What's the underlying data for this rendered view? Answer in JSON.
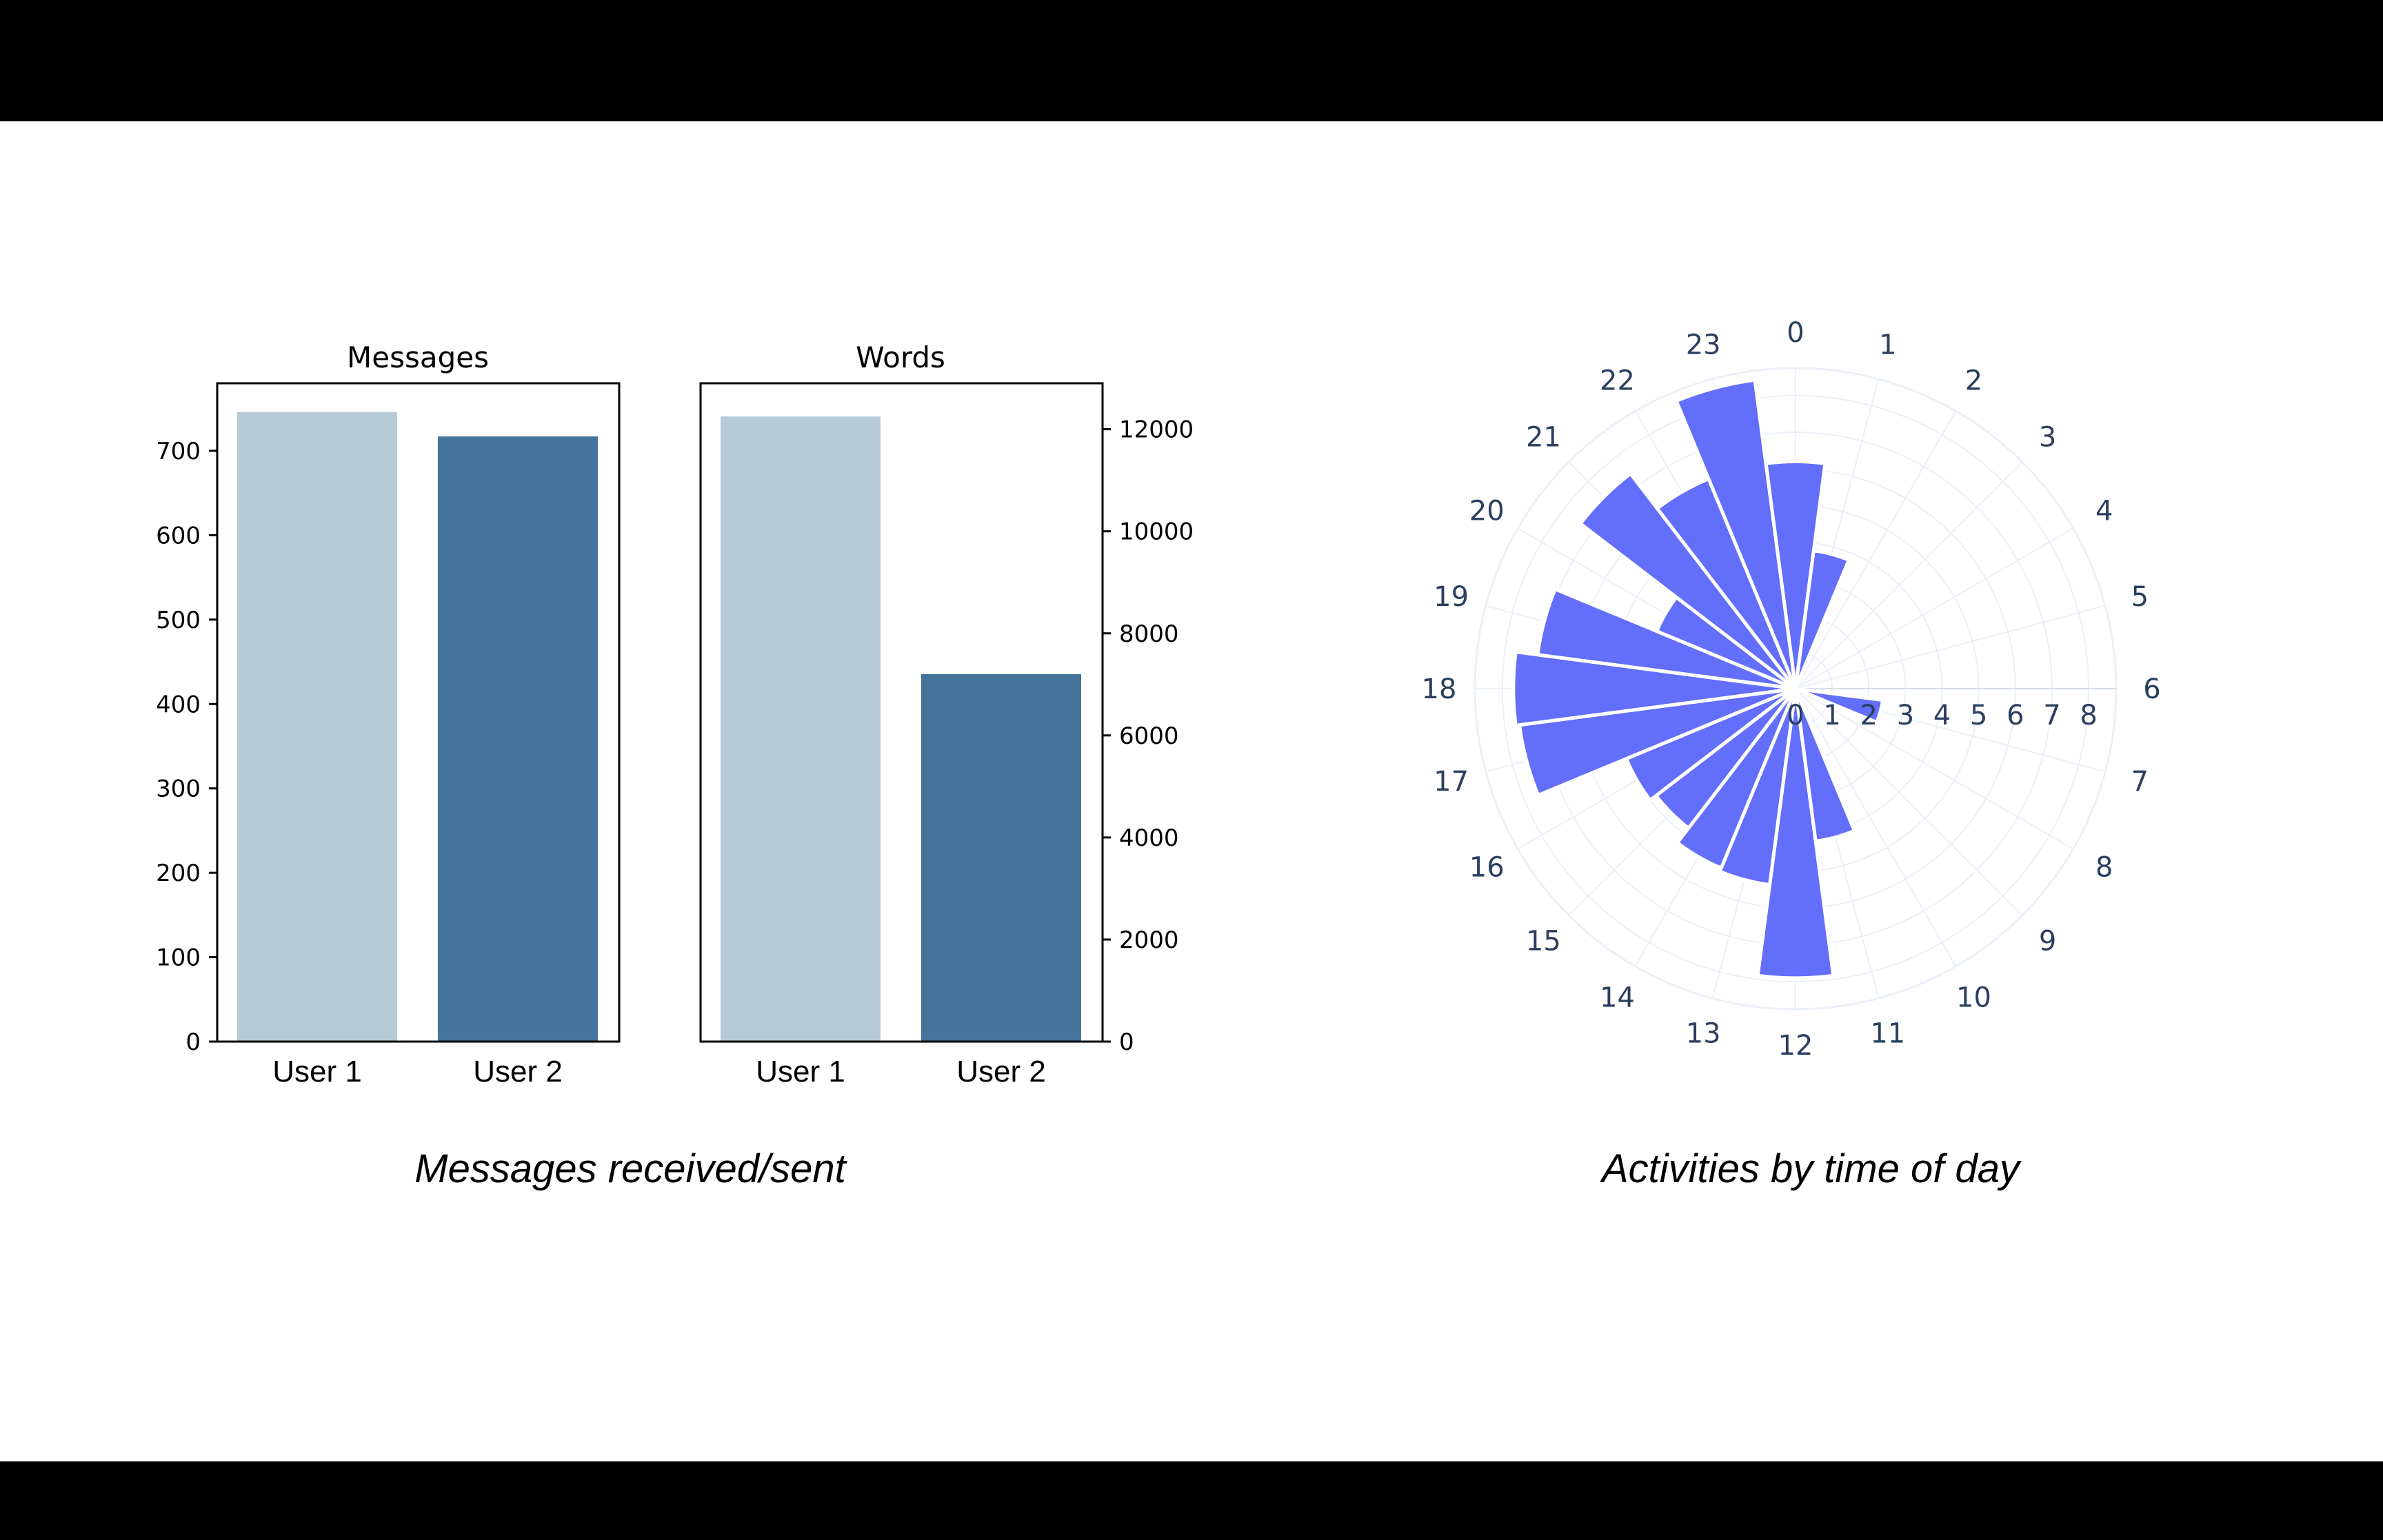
{
  "captions": {
    "left": "Messages received/sent",
    "right": "Activities by time of  day"
  },
  "colors": {
    "user1": "#b5cbd8",
    "user2": "#44739c",
    "polar_bar": "#636efa",
    "polar_grid": "#ebf0f8",
    "polar_text": "#2a3f5f"
  },
  "chart_data": [
    {
      "type": "bar",
      "title": "Messages",
      "categories": [
        "User 1",
        "User 2"
      ],
      "values": [
        746,
        717
      ],
      "ylim": [
        0,
        780
      ],
      "yticks": [
        0,
        100,
        200,
        300,
        400,
        500,
        600,
        700
      ],
      "yaxis_side": "left"
    },
    {
      "type": "bar",
      "title": "Words",
      "categories": [
        "User 1",
        "User 2"
      ],
      "values": [
        12250,
        7200
      ],
      "ylim": [
        0,
        12900
      ],
      "yticks": [
        0,
        2000,
        4000,
        6000,
        8000,
        10000,
        12000
      ],
      "yaxis_side": "right"
    },
    {
      "type": "polar-bar",
      "angular_categories": [
        "0",
        "1",
        "2",
        "3",
        "4",
        "5",
        "6",
        "7",
        "8",
        "9",
        "10",
        "11",
        "12",
        "13",
        "14",
        "15",
        "16",
        "17",
        "18",
        "19",
        "20",
        "21",
        "22",
        "23"
      ],
      "values": [
        6.2,
        3.8,
        0,
        0,
        0,
        0,
        0,
        2.4,
        0,
        0,
        0,
        4.2,
        7.9,
        5.4,
        5.3,
        4.8,
        5.0,
        7.6,
        7.7,
        7.1,
        4.1,
        7.4,
        6.2,
        8.5
      ],
      "radial_range": [
        0,
        8.75
      ],
      "radial_ticks": [
        "0",
        "1",
        "2",
        "3",
        "4",
        "5",
        "6",
        "7",
        "8"
      ],
      "direction": "clockwise",
      "rotation_start": "top"
    }
  ]
}
